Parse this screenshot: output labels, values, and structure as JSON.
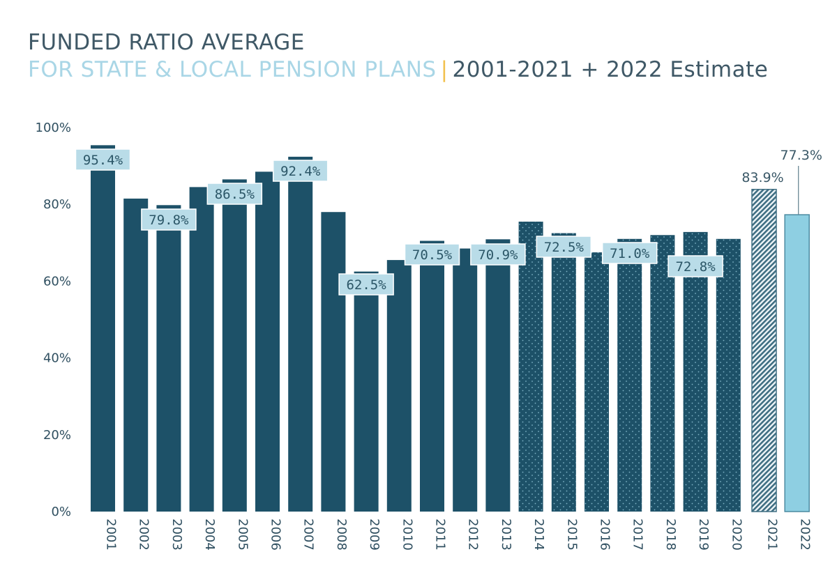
{
  "header": {
    "title": "FUNDED RATIO AVERAGE",
    "subtitle_a": "FOR STATE & LOCAL PENSION PLANS",
    "subtitle_sep": "|",
    "subtitle_b": "2001-2021 + 2022 Estimate"
  },
  "colors": {
    "bar_dark": "#1d5168",
    "bar_light": "#8ecfe2",
    "label_box": "#b9dce8",
    "label_text": "#2b5667",
    "axis_text": "#2f4f60",
    "sep": "#f2c14e"
  },
  "chart_data": {
    "type": "bar",
    "title": "FUNDED RATIO AVERAGE",
    "subtitle": "FOR STATE & LOCAL PENSION PLANS | 2001-2021 + 2022 Estimate",
    "xlabel": "",
    "ylabel": "",
    "ylim": [
      0,
      100
    ],
    "yticks": [
      "0%",
      "20%",
      "40%",
      "60%",
      "80%",
      "100%"
    ],
    "grid": false,
    "categories": [
      "2001",
      "2002",
      "2003",
      "2004",
      "2005",
      "2006",
      "2007",
      "2008",
      "2009",
      "2010",
      "2011",
      "2012",
      "2013",
      "2014",
      "2015",
      "2016",
      "2017",
      "2018",
      "2019",
      "2020",
      "2021",
      "2022"
    ],
    "values": [
      95.4,
      81.5,
      79.8,
      84.5,
      86.5,
      88.5,
      92.4,
      78.0,
      62.5,
      65.5,
      70.5,
      68.5,
      70.9,
      75.5,
      72.5,
      67.5,
      71.0,
      72.0,
      72.8,
      71.0,
      83.9,
      77.3
    ],
    "bar_style": [
      "solid",
      "solid",
      "solid",
      "solid",
      "solid",
      "solid",
      "solid",
      "solid",
      "solid",
      "solid",
      "solid",
      "solid",
      "solid",
      "dotted",
      "dotted",
      "dotted",
      "dotted",
      "dotted",
      "dotted",
      "dotted",
      "hatched",
      "light"
    ],
    "data_labels": [
      {
        "index": 0,
        "text": "95.4%",
        "style": "box"
      },
      {
        "index": 2,
        "text": "79.8%",
        "style": "box"
      },
      {
        "index": 4,
        "text": "86.5%",
        "style": "box"
      },
      {
        "index": 6,
        "text": "92.4%",
        "style": "box"
      },
      {
        "index": 8,
        "text": "62.5%",
        "style": "box"
      },
      {
        "index": 10,
        "text": "70.5%",
        "style": "box"
      },
      {
        "index": 12,
        "text": "70.9%",
        "style": "box"
      },
      {
        "index": 14,
        "text": "72.5%",
        "style": "box"
      },
      {
        "index": 16,
        "text": "71.0%",
        "style": "box"
      },
      {
        "index": 18,
        "text": "72.8%",
        "style": "box"
      },
      {
        "index": 20,
        "text": "83.9%",
        "style": "plain"
      },
      {
        "index": 21,
        "text": "77.3%",
        "style": "plain-leader"
      }
    ]
  }
}
